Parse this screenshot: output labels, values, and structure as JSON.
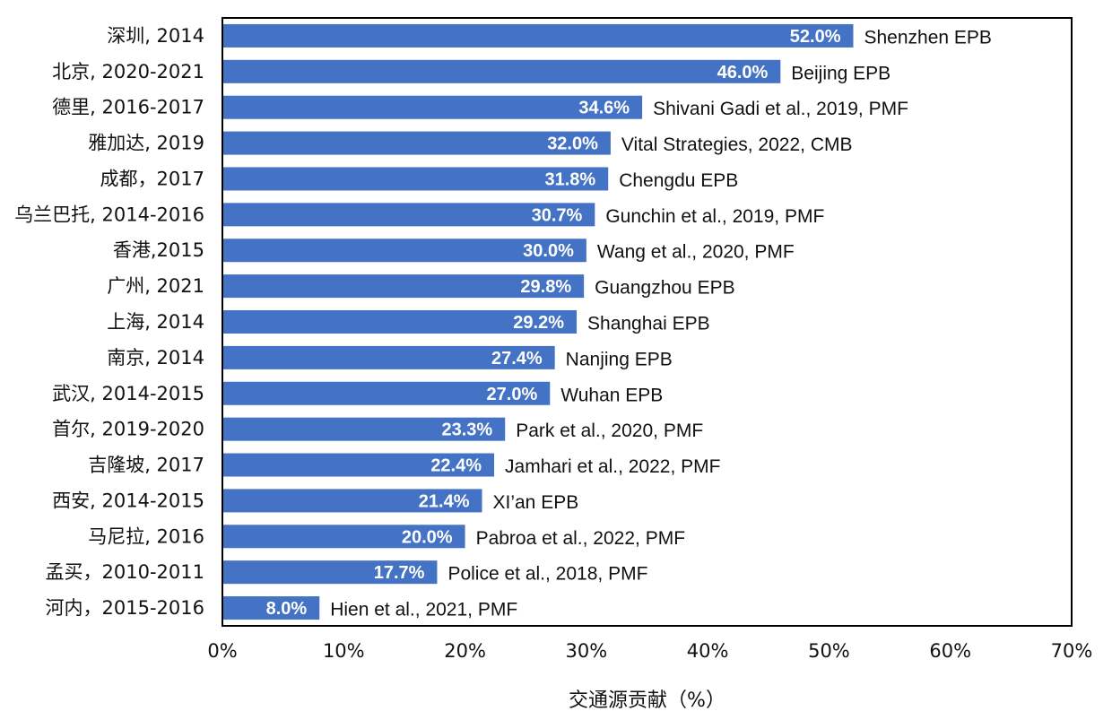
{
  "colors": {
    "bar": "#4472C4",
    "frame": "#000000",
    "text": "#111111",
    "value_label": "#ffffff"
  },
  "chart_data": {
    "type": "bar",
    "orientation": "horizontal",
    "title": "",
    "xlabel": "交通源贡献（%）",
    "ylabel": "",
    "xlim": [
      0,
      70
    ],
    "xticks": [
      0,
      10,
      20,
      30,
      40,
      50,
      60,
      70
    ],
    "xtick_labels": [
      "0%",
      "10%",
      "20%",
      "30%",
      "40%",
      "50%",
      "60%",
      "70%"
    ],
    "grid": false,
    "legend": "none",
    "categories": [
      "深圳, 2014",
      "北京, 2020-2021",
      "德里, 2016-2017",
      "雅加达, 2019",
      "成都，2017",
      "乌兰巴托, 2014-2016",
      "香港,2015",
      "广州, 2021",
      "上海, 2014",
      "南京, 2014",
      "武汉, 2014-2015",
      "首尔, 2019-2020",
      "吉隆坡, 2017",
      "西安, 2014-2015",
      "马尼拉, 2016",
      "孟买，2010-2011",
      "河内，2015-2016"
    ],
    "values": [
      52.0,
      46.0,
      34.6,
      32.0,
      31.8,
      30.7,
      30.0,
      29.8,
      29.2,
      27.4,
      27.0,
      23.3,
      22.4,
      21.4,
      20.0,
      17.7,
      8.0
    ],
    "value_labels": [
      "52.0%",
      "46.0%",
      "34.6%",
      "32.0%",
      "31.8%",
      "30.7%",
      "30.0%",
      "29.8%",
      "29.2%",
      "27.4%",
      "27.0%",
      "23.3%",
      "22.4%",
      "21.4%",
      "20.0%",
      "17.7%",
      "8.0%"
    ],
    "sources": [
      "Shenzhen EPB",
      "Beijing EPB",
      "Shivani Gadi et al., 2019, PMF",
      "Vital Strategies, 2022, CMB",
      "Chengdu EPB",
      "Gunchin et al., 2019, PMF",
      "Wang et al., 2020, PMF",
      "Guangzhou EPB",
      "Shanghai EPB",
      "Nanjing EPB",
      "Wuhan EPB",
      "Park et al., 2020, PMF",
      "Jamhari et al., 2022, PMF",
      "XI’an EPB",
      "Pabroa et al., 2022, PMF",
      "Police et al., 2018, PMF",
      "Hien et al., 2021, PMF"
    ]
  }
}
